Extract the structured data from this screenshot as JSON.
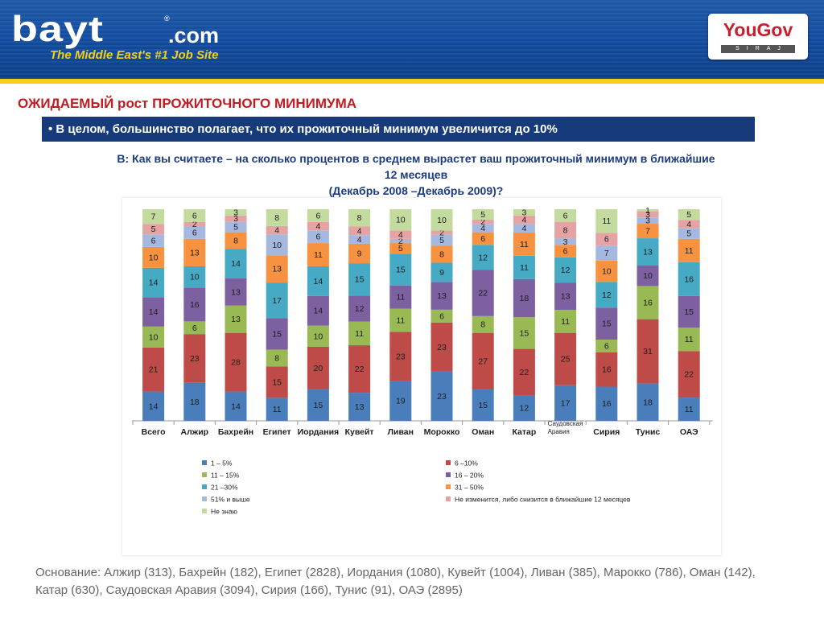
{
  "header": {
    "logo_word": "bayt",
    "logo_com": ".com",
    "logo_reg": "®",
    "tagline": "The Middle East's #1 Job Site",
    "partner_name": "YouGov",
    "partner_sub": "SIRAJ"
  },
  "colors": {
    "header_blue": "#124b9c",
    "accent_yellow": "#f3cf1c",
    "title_red": "#c01c22",
    "bar_navy": "#163a7a",
    "question_blue": "#1d3c7e"
  },
  "slide": {
    "title": "ОЖИДАЕМЫЙ рост ПРОЖИТОЧНОГО МИНИМУМА",
    "highlight": "•  В целом, большинство полагает, что их прожиточный минимум увеличится до 10%",
    "question_line1": "В: Как вы считаете – на сколько процентов в среднем вырастет ваш прожиточный минимум в ближайшие",
    "question_line2": "12 месяцев",
    "question_line3": "(Декабрь 2008 –Декабрь 2009)?"
  },
  "chart_data": {
    "type": "bar",
    "stacked": true,
    "legend_position": "bottom",
    "categories": [
      "Всего",
      "Алжир",
      "Бахрейн",
      "Египет",
      "Иордания",
      "Кувейт",
      "Ливан",
      "Морокко",
      "Оман",
      "Катар",
      "Саудовская Аравия",
      "Сирия",
      "Тунис",
      "ОАЭ"
    ],
    "series": [
      {
        "name": "1 – 5%",
        "color": "#4a7ebb",
        "values": [
          14,
          18,
          14,
          11,
          15,
          13,
          19,
          23,
          15,
          12,
          17,
          16,
          18,
          11
        ]
      },
      {
        "name": "6 –10%",
        "color": "#be4b48",
        "values": [
          21,
          23,
          28,
          15,
          20,
          22,
          23,
          23,
          27,
          22,
          25,
          16,
          31,
          22
        ]
      },
      {
        "name": "11 – 15%",
        "color": "#98b954",
        "values": [
          10,
          6,
          13,
          8,
          10,
          11,
          11,
          6,
          8,
          15,
          11,
          6,
          16,
          11
        ]
      },
      {
        "name": "16 – 20%",
        "color": "#7d60a0",
        "values": [
          14,
          16,
          13,
          15,
          14,
          12,
          11,
          13,
          22,
          18,
          13,
          15,
          10,
          15
        ]
      },
      {
        "name": "21 –30%",
        "color": "#46aac5",
        "values": [
          14,
          10,
          14,
          17,
          14,
          15,
          15,
          9,
          12,
          11,
          12,
          12,
          13,
          16
        ]
      },
      {
        "name": "31 – 50%",
        "color": "#f69240",
        "values": [
          10,
          13,
          8,
          13,
          11,
          9,
          5,
          8,
          6,
          11,
          6,
          10,
          7,
          11
        ]
      },
      {
        "name": "51% и выше",
        "color": "#a5b9e0",
        "values": [
          6,
          6,
          5,
          10,
          6,
          4,
          2,
          5,
          4,
          4,
          3,
          7,
          3,
          5
        ]
      },
      {
        "name": "Не изменится, либо снизится в ближайшие 12 месяцев",
        "color": "#e6a3a3",
        "values": [
          5,
          2,
          3,
          4,
          4,
          4,
          4,
          2,
          2,
          4,
          8,
          6,
          3,
          4
        ]
      },
      {
        "name": "Не знаю",
        "color": "#c4dba0",
        "values": [
          7,
          6,
          3,
          8,
          6,
          8,
          10,
          10,
          5,
          3,
          6,
          11,
          1,
          5
        ]
      }
    ],
    "legend_left": [
      "1 – 5%",
      "11 – 15%",
      "21 –30%",
      "51% и выше",
      "Не знаю"
    ],
    "legend_right": [
      "6 –10%",
      "16 – 20%",
      "31 – 50%",
      "Не изменится, либо снизится в ближайшие 12 месяцев"
    ]
  },
  "footnote": {
    "line1": "Основание: Алжир (313), Бахрейн (182), Египет (2828), Иордания (1080), Кувейт (1004), Ливан  (385), Марокко (786), Оман (142),",
    "line2": "Катар (630), Саудовская Аравия (3094), Сирия (166), Тунис (91), ОАЭ (2895)"
  }
}
